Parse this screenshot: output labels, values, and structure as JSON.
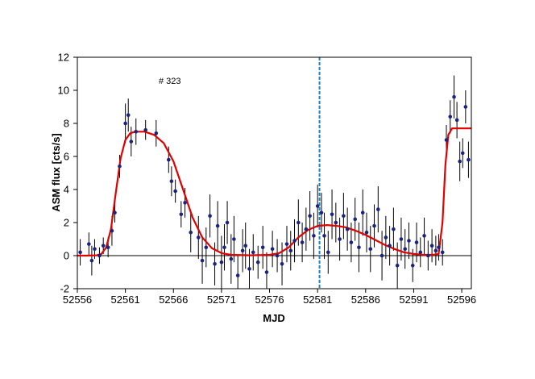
{
  "chart_data": {
    "type": "scatter",
    "title": "",
    "annotation": "# 323",
    "xlabel": "MJD",
    "ylabel": "ASM flux [cts/s]",
    "xlim": [
      52556,
      52597
    ],
    "ylim": [
      -2,
      12
    ],
    "x_ticks": [
      52556,
      52561,
      52566,
      52571,
      52576,
      52581,
      52586,
      52591,
      52596
    ],
    "y_ticks": [
      -2,
      0,
      2,
      4,
      6,
      8,
      10,
      12
    ],
    "grid": false,
    "legend": "none",
    "zero_line": 0,
    "vertical_marker": {
      "x": 52581.2,
      "style": "dashed",
      "color": "#1f7fc0"
    },
    "colors": {
      "points": "#1a237e",
      "errorbars": "#000000",
      "model": "#e00000",
      "frame": "#000000"
    },
    "series": [
      {
        "kind": "points-with-errorbars",
        "points": [
          [
            52556.3,
            0.2,
            0.8
          ],
          [
            52557.2,
            0.7,
            0.7
          ],
          [
            52557.5,
            -0.3,
            0.9
          ],
          [
            52557.8,
            0.4,
            0.6
          ],
          [
            52558.3,
            0.0,
            0.5
          ],
          [
            52558.7,
            0.6,
            0.5
          ],
          [
            52559.2,
            0.5,
            0.6
          ],
          [
            52559.6,
            1.5,
            0.9
          ],
          [
            52559.9,
            2.6,
            0.6
          ],
          [
            52560.4,
            5.4,
            0.7
          ],
          [
            52561.0,
            8.0,
            1.2
          ],
          [
            52561.3,
            8.5,
            1.0
          ],
          [
            52561.6,
            6.9,
            0.9
          ],
          [
            52562.1,
            7.5,
            0.8
          ],
          [
            52563.1,
            7.6,
            0.6
          ],
          [
            52564.2,
            7.4,
            0.8
          ],
          [
            52565.5,
            5.8,
            0.8
          ],
          [
            52565.8,
            4.5,
            0.9
          ],
          [
            52566.2,
            3.9,
            0.7
          ],
          [
            52566.8,
            2.5,
            0.8
          ],
          [
            52567.2,
            3.2,
            0.9
          ],
          [
            52567.8,
            1.4,
            1.2
          ],
          [
            52568.6,
            1.1,
            1.3
          ],
          [
            52569.0,
            -0.3,
            1.4
          ],
          [
            52569.4,
            0.5,
            1.2
          ],
          [
            52569.8,
            2.4,
            1.3
          ],
          [
            52570.3,
            -0.5,
            1.3
          ],
          [
            52570.6,
            1.8,
            1.5
          ],
          [
            52571.0,
            -0.4,
            1.6
          ],
          [
            52571.3,
            0.5,
            1.4
          ],
          [
            52571.6,
            2.0,
            1.3
          ],
          [
            52572.0,
            -0.2,
            1.5
          ],
          [
            52572.3,
            1.0,
            1.4
          ],
          [
            52572.7,
            -1.2,
            1.2
          ],
          [
            52573.2,
            0.3,
            1.3
          ],
          [
            52573.5,
            0.6,
            1.4
          ],
          [
            52573.9,
            -0.8,
            1.2
          ],
          [
            52574.3,
            0.2,
            1.1
          ],
          [
            52574.8,
            -0.4,
            1.0
          ],
          [
            52575.3,
            0.5,
            1.3
          ],
          [
            52575.7,
            -1.0,
            1.2
          ],
          [
            52576.3,
            0.4,
            1.1
          ],
          [
            52576.8,
            0.0,
            1.0
          ],
          [
            52577.3,
            -0.5,
            1.3
          ],
          [
            52577.8,
            0.7,
            1.1
          ],
          [
            52578.2,
            0.3,
            1.2
          ],
          [
            52578.6,
            0.9,
            1.3
          ],
          [
            52579.0,
            2.0,
            1.4
          ],
          [
            52579.4,
            0.8,
            1.2
          ],
          [
            52579.8,
            1.6,
            1.3
          ],
          [
            52580.2,
            2.4,
            1.5
          ],
          [
            52580.6,
            1.2,
            1.4
          ],
          [
            52581.0,
            3.0,
            1.3
          ],
          [
            52581.4,
            2.6,
            1.2
          ],
          [
            52581.7,
            1.2,
            1.4
          ],
          [
            52582.1,
            0.2,
            1.3
          ],
          [
            52582.5,
            2.5,
            1.5
          ],
          [
            52582.9,
            2.0,
            1.2
          ],
          [
            52583.3,
            1.0,
            1.3
          ],
          [
            52583.7,
            2.4,
            1.4
          ],
          [
            52584.1,
            1.6,
            1.3
          ],
          [
            52584.5,
            0.8,
            1.2
          ],
          [
            52584.9,
            2.2,
            1.3
          ],
          [
            52585.3,
            0.5,
            1.5
          ],
          [
            52585.7,
            2.6,
            1.4
          ],
          [
            52586.1,
            1.4,
            1.2
          ],
          [
            52586.5,
            0.4,
            1.4
          ],
          [
            52586.9,
            1.8,
            1.3
          ],
          [
            52587.3,
            2.8,
            1.4
          ],
          [
            52587.7,
            0.0,
            1.5
          ],
          [
            52588.1,
            1.1,
            1.3
          ],
          [
            52588.5,
            0.6,
            1.2
          ],
          [
            52588.9,
            1.6,
            1.3
          ],
          [
            52589.3,
            -0.6,
            1.4
          ],
          [
            52589.7,
            1.0,
            1.3
          ],
          [
            52590.1,
            0.4,
            1.2
          ],
          [
            52590.5,
            0.9,
            1.1
          ],
          [
            52590.9,
            -0.6,
            1.0
          ],
          [
            52591.3,
            0.8,
            1.2
          ],
          [
            52591.7,
            0.2,
            0.9
          ],
          [
            52592.1,
            1.2,
            1.1
          ],
          [
            52592.5,
            0.0,
            0.9
          ],
          [
            52592.9,
            0.6,
            1.0
          ],
          [
            52593.3,
            0.3,
            0.9
          ],
          [
            52593.6,
            0.5,
            0.8
          ],
          [
            52594.0,
            0.2,
            0.8
          ],
          [
            52594.4,
            7.0,
            0.9
          ],
          [
            52594.8,
            8.4,
            1.0
          ],
          [
            52595.2,
            9.6,
            1.3
          ],
          [
            52595.5,
            8.2,
            1.1
          ],
          [
            52595.8,
            5.7,
            1.2
          ],
          [
            52596.1,
            6.2,
            0.9
          ],
          [
            52596.4,
            9.0,
            1.0
          ],
          [
            52596.7,
            5.8,
            1.1
          ]
        ]
      },
      {
        "kind": "model-curve",
        "points": [
          [
            52556,
            0.0
          ],
          [
            52557,
            0.0
          ],
          [
            52558,
            0.02
          ],
          [
            52558.5,
            0.1
          ],
          [
            52559,
            0.5
          ],
          [
            52559.5,
            1.6
          ],
          [
            52560,
            3.8
          ],
          [
            52560.5,
            5.9
          ],
          [
            52561,
            7.0
          ],
          [
            52561.5,
            7.4
          ],
          [
            52562,
            7.5
          ],
          [
            52563,
            7.5
          ],
          [
            52564,
            7.3
          ],
          [
            52565,
            6.8
          ],
          [
            52566,
            5.7
          ],
          [
            52567,
            4.0
          ],
          [
            52568,
            2.3
          ],
          [
            52569,
            1.1
          ],
          [
            52570,
            0.45
          ],
          [
            52571,
            0.15
          ],
          [
            52572,
            0.05
          ],
          [
            52574,
            0.02
          ],
          [
            52576,
            0.05
          ],
          [
            52577,
            0.15
          ],
          [
            52578,
            0.5
          ],
          [
            52579,
            1.1
          ],
          [
            52580,
            1.55
          ],
          [
            52581,
            1.8
          ],
          [
            52582,
            1.85
          ],
          [
            52583,
            1.8
          ],
          [
            52584,
            1.7
          ],
          [
            52585,
            1.5
          ],
          [
            52586,
            1.25
          ],
          [
            52587,
            0.95
          ],
          [
            52588,
            0.65
          ],
          [
            52589,
            0.4
          ],
          [
            52590,
            0.2
          ],
          [
            52591,
            0.1
          ],
          [
            52592,
            0.05
          ],
          [
            52593,
            0.05
          ],
          [
            52593.6,
            0.1
          ],
          [
            52594,
            2.0
          ],
          [
            52594.3,
            5.5
          ],
          [
            52594.6,
            7.3
          ],
          [
            52595,
            7.7
          ],
          [
            52597,
            7.7
          ]
        ]
      }
    ]
  }
}
